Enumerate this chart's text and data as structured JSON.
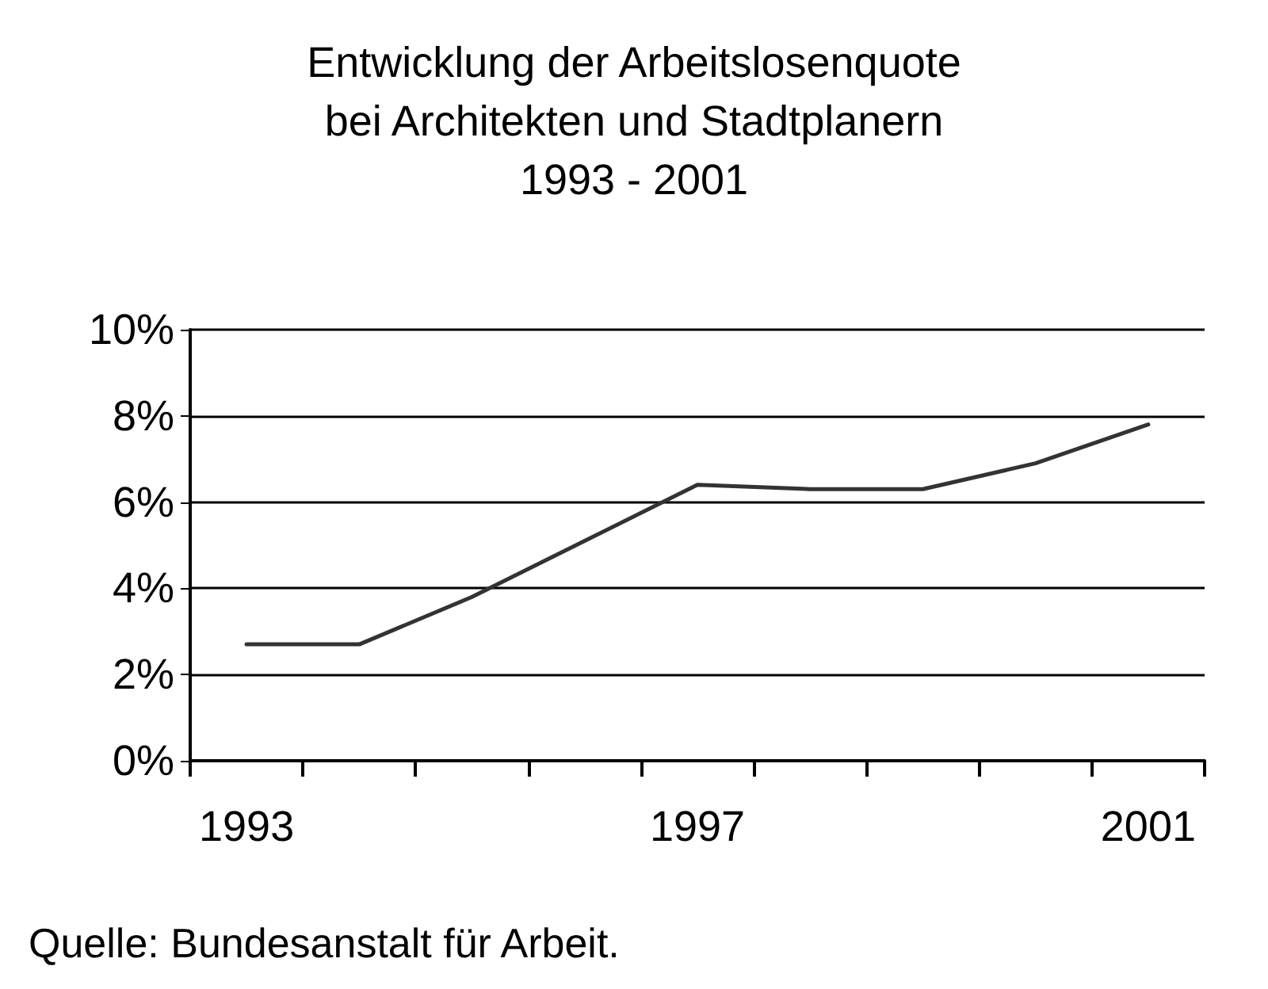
{
  "chart_data": {
    "type": "line",
    "title": "Entwicklung der Arbeitslosenquote\nbei Architekten und Stadtplanern\n1993 - 2001",
    "categories": [
      "1993",
      null,
      null,
      null,
      "1997",
      null,
      null,
      null,
      "2001"
    ],
    "series": [
      {
        "color": "#333333",
        "values": [
          2.7,
          2.7,
          3.8,
          5.1,
          6.4,
          6.3,
          6.3,
          6.9,
          7.8
        ]
      }
    ],
    "ylim": [
      0,
      10
    ],
    "yticks": [
      {
        "value": 0,
        "label": "0%"
      },
      {
        "value": 2,
        "label": "2%"
      },
      {
        "value": 4,
        "label": "4%"
      },
      {
        "value": 6,
        "label": "6%"
      },
      {
        "value": 8,
        "label": "8%"
      },
      {
        "value": 10,
        "label": "10%"
      }
    ],
    "grid": "y",
    "marker": "none",
    "line_style": "solid",
    "annotations": [
      "Quelle: Bundesanstalt für Arbeit."
    ]
  }
}
